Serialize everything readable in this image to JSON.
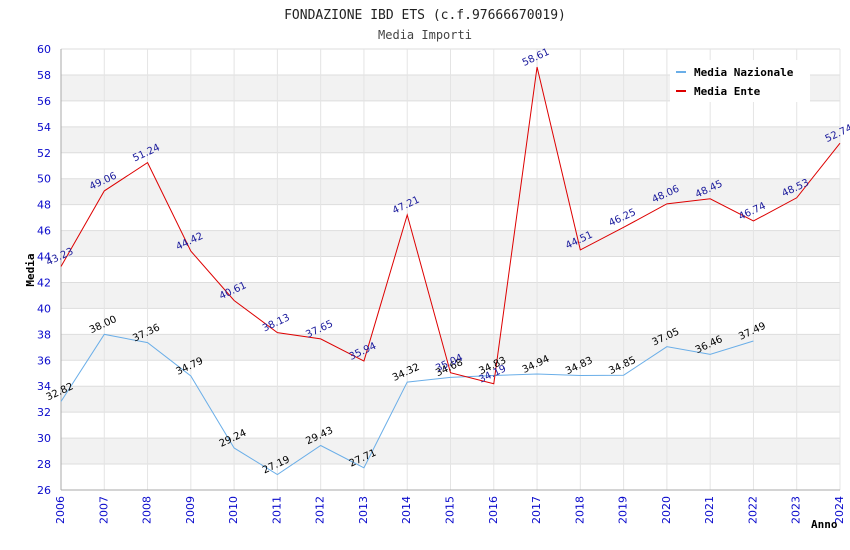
{
  "chart_data": {
    "type": "line",
    "title": "FONDAZIONE IBD ETS (c.f.97666670019)",
    "subtitle": "Media Importi",
    "xlabel": "Anno",
    "ylabel": "Media",
    "ylim": [
      26,
      60
    ],
    "ytick_step": 2,
    "grid": true,
    "legend_position": "top-right",
    "x": [
      "2006",
      "2007",
      "2008",
      "2009",
      "2010",
      "2011",
      "2012",
      "2013",
      "2014",
      "2015",
      "2016",
      "2017",
      "2018",
      "2019",
      "2020",
      "2021",
      "2022",
      "2023",
      "2024"
    ],
    "series": [
      {
        "name": "Media Nazionale",
        "color": "#6aaee8",
        "values": [
          32.82,
          38.0,
          37.36,
          34.79,
          29.24,
          27.19,
          29.43,
          27.71,
          34.32,
          34.68,
          34.83,
          34.94,
          34.83,
          34.85,
          37.05,
          36.46,
          37.49,
          null,
          null
        ],
        "labels": [
          "32.82",
          "38.00",
          "37.36",
          "34.79",
          "29.24",
          "27.19",
          "29.43",
          "27.71",
          "34.32",
          "34.68",
          "34.83",
          "34.94",
          "34.83",
          "34.85",
          "37.05",
          "36.46",
          "37.49",
          null,
          null
        ]
      },
      {
        "name": "Media Ente",
        "color": "#dd0000",
        "values": [
          43.23,
          49.06,
          51.24,
          44.42,
          40.61,
          38.13,
          37.65,
          35.94,
          47.21,
          35.04,
          34.19,
          58.61,
          44.51,
          46.25,
          48.06,
          48.45,
          46.74,
          48.53,
          52.74
        ],
        "labels": [
          "43.23",
          "49.06",
          "51.24",
          "44.42",
          "40.61",
          "38.13",
          "37.65",
          "35.94",
          "47.21",
          "35.04",
          "34.19",
          "58.61",
          "44.51",
          "46.25",
          "48.06",
          "48.45",
          "46.74",
          "48.53",
          "52.74"
        ]
      }
    ]
  }
}
